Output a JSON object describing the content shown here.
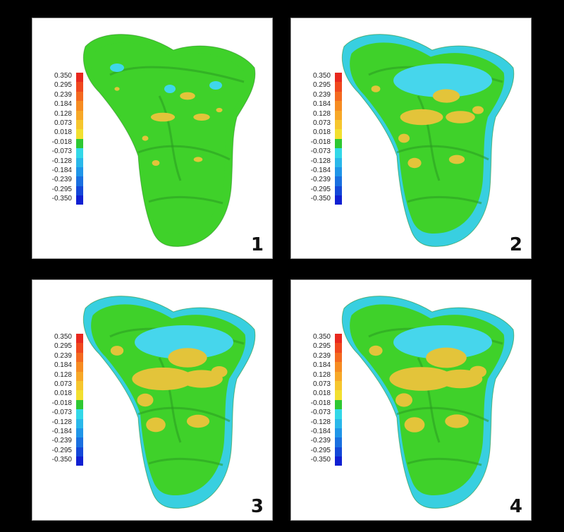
{
  "scale_labels": [
    "0.350",
    "0.295",
    "0.239",
    "0.184",
    "0.128",
    "0.073",
    "0.018",
    "-0.018",
    "-0.073",
    "-0.128",
    "-0.184",
    "-0.239",
    "-0.295",
    "-0.350"
  ],
  "scale_colors": [
    "#e8281e",
    "#f0481e",
    "#f46a20",
    "#f68c22",
    "#f7a828",
    "#f6c62e",
    "#f2e030",
    "#2ec832",
    "#33d8e8",
    "#2ab8ea",
    "#2096e8",
    "#1a70e0",
    "#1448d8",
    "#1020d2"
  ],
  "panels": [
    {
      "number": "1",
      "base": "#3fd12a",
      "rim": "#3fd12a",
      "fossa": "#3fd12a"
    },
    {
      "number": "2",
      "base": "#3fd12a",
      "rim": "#38cfe0",
      "fossa": "#46d6ec"
    },
    {
      "number": "3",
      "base": "#3fd12a",
      "rim": "#38cfe0",
      "fossa": "#46d6ec"
    },
    {
      "number": "4",
      "base": "#3fd12a",
      "rim": "#38cfe0",
      "fossa": "#46d6ec"
    }
  ],
  "colors": {
    "yellow": "#e3c43a",
    "cyan": "#3fd7ea",
    "shade": "#2a9a20"
  }
}
